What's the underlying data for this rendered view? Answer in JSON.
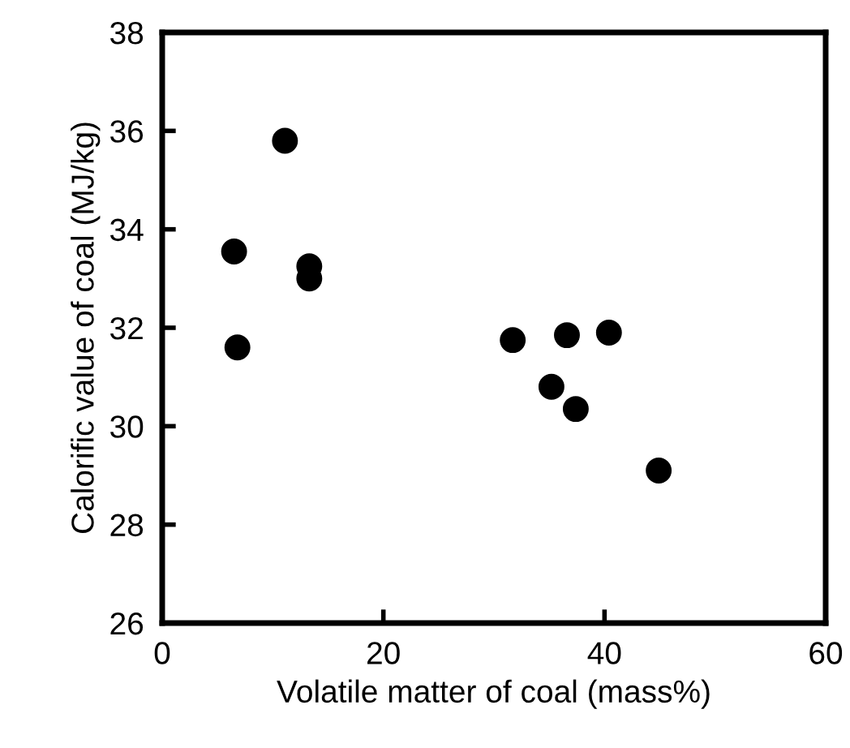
{
  "chart_data": {
    "type": "scatter",
    "xlabel": "Volatile matter of coal (mass%)",
    "ylabel": "Calorific value of coal (MJ/kg)",
    "x": [
      11.1,
      6.5,
      13.3,
      13.3,
      6.8,
      31.7,
      36.6,
      40.4,
      35.2,
      37.4,
      44.9
    ],
    "series": [
      {
        "color": "#000000",
        "values": [
          35.8,
          33.55,
          33.25,
          33.0,
          31.6,
          31.75,
          31.85,
          31.9,
          30.8,
          30.35,
          29.1
        ]
      }
    ],
    "xlim": [
      0,
      60
    ],
    "xticks": [
      0,
      20,
      40,
      60
    ],
    "ylim": [
      26,
      38
    ],
    "yticks": [
      26,
      28,
      30,
      32,
      34,
      36,
      38
    ],
    "marker": "circle",
    "grid": false,
    "legend": false
  }
}
